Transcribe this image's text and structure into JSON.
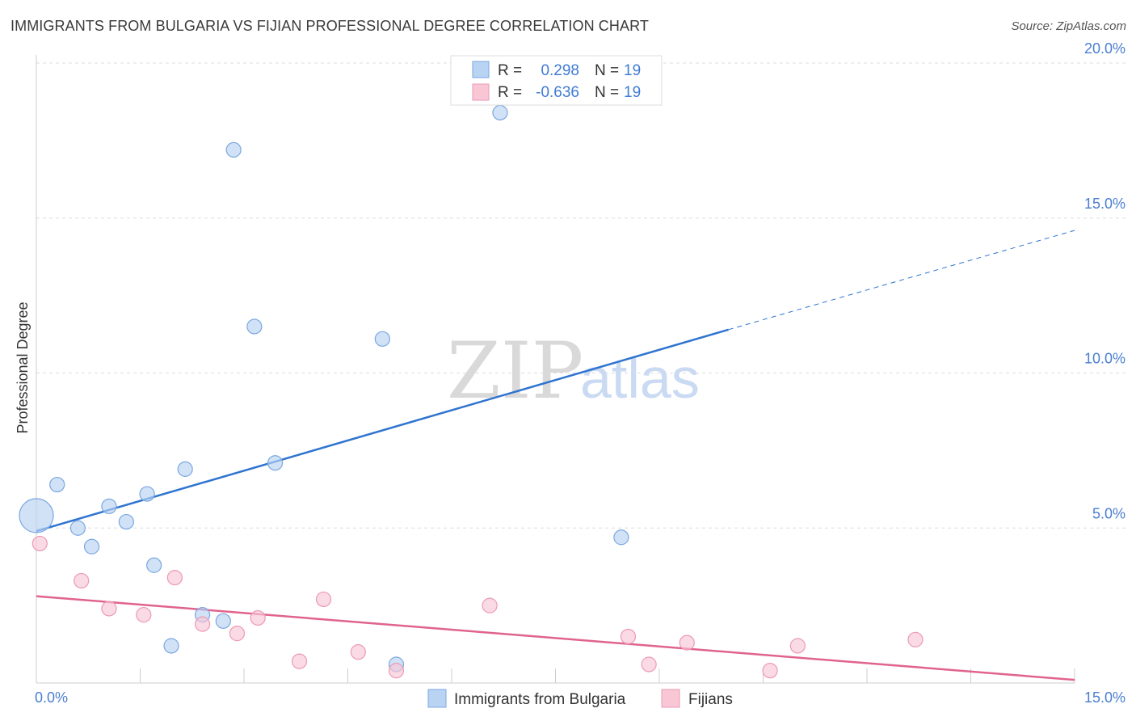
{
  "title": "IMMIGRANTS FROM BULGARIA VS FIJIAN PROFESSIONAL DEGREE CORRELATION CHART",
  "source": "Source: ZipAtlas.com",
  "watermark": {
    "zip": "ZIP",
    "atlas": "atlas"
  },
  "colors": {
    "blue_fill": "#b9d3f3",
    "blue_stroke": "#7aa7e0",
    "blue_line": "#2f74d0",
    "pink_fill": "#f8c6d5",
    "pink_stroke": "#ec9ab3",
    "pink_line": "#e0638e",
    "tick_text": "#4a7fd0",
    "grid": "#dddddd"
  },
  "chart_data": {
    "type": "scatter",
    "title": "IMMIGRANTS FROM BULGARIA VS FIJIAN PROFESSIONAL DEGREE CORRELATION CHART",
    "xlabel": "",
    "ylabel": "Professional Degree",
    "xlim": [
      0,
      15
    ],
    "ylim": [
      0,
      20
    ],
    "x_tick_labels": [
      "0.0%",
      "15.0%"
    ],
    "y_ticks": [
      5,
      10,
      15,
      20
    ],
    "y_tick_labels": [
      "5.0%",
      "10.0%",
      "15.0%",
      "20.0%"
    ],
    "grid": "horizontal dashed",
    "legend_top": [
      {
        "r_label": "R =",
        "r_value": "0.298",
        "n_label": "N =",
        "n_value": "19"
      },
      {
        "r_label": "R =",
        "r_value": "-0.636",
        "n_label": "N =",
        "n_value": "19"
      }
    ],
    "series": [
      {
        "name": "Immigrants from Bulgaria",
        "color": "#b9d3f3",
        "points": [
          {
            "x": 0.0,
            "y": 5.4,
            "big": true
          },
          {
            "x": 0.3,
            "y": 6.4
          },
          {
            "x": 0.6,
            "y": 5.0
          },
          {
            "x": 0.8,
            "y": 4.4
          },
          {
            "x": 1.05,
            "y": 5.7
          },
          {
            "x": 1.3,
            "y": 5.2
          },
          {
            "x": 1.6,
            "y": 6.1
          },
          {
            "x": 1.7,
            "y": 3.8
          },
          {
            "x": 1.95,
            "y": 1.2
          },
          {
            "x": 2.15,
            "y": 6.9
          },
          {
            "x": 2.4,
            "y": 2.2
          },
          {
            "x": 2.7,
            "y": 2.0
          },
          {
            "x": 2.85,
            "y": 17.2
          },
          {
            "x": 3.15,
            "y": 11.5
          },
          {
            "x": 3.45,
            "y": 7.1
          },
          {
            "x": 5.0,
            "y": 11.1
          },
          {
            "x": 5.2,
            "y": 0.6
          },
          {
            "x": 6.7,
            "y": 18.4
          },
          {
            "x": 8.45,
            "y": 4.7
          }
        ],
        "trend": {
          "x0": 0,
          "y0": 4.9,
          "x1": 10.0,
          "y1": 11.4,
          "dash_to_x": 15,
          "dash_to_y": 14.6
        }
      },
      {
        "name": "Fijians",
        "color": "#f8c6d5",
        "points": [
          {
            "x": 0.05,
            "y": 4.5
          },
          {
            "x": 0.65,
            "y": 3.3
          },
          {
            "x": 1.05,
            "y": 2.4
          },
          {
            "x": 1.55,
            "y": 2.2
          },
          {
            "x": 2.0,
            "y": 3.4
          },
          {
            "x": 2.4,
            "y": 1.9
          },
          {
            "x": 2.9,
            "y": 1.6
          },
          {
            "x": 3.2,
            "y": 2.1
          },
          {
            "x": 3.8,
            "y": 0.7
          },
          {
            "x": 4.15,
            "y": 2.7
          },
          {
            "x": 4.65,
            "y": 1.0
          },
          {
            "x": 5.2,
            "y": 0.4
          },
          {
            "x": 6.55,
            "y": 2.5
          },
          {
            "x": 8.55,
            "y": 1.5
          },
          {
            "x": 8.85,
            "y": 0.6
          },
          {
            "x": 9.4,
            "y": 1.3
          },
          {
            "x": 10.6,
            "y": 0.4
          },
          {
            "x": 11.0,
            "y": 1.2
          },
          {
            "x": 12.7,
            "y": 1.4
          }
        ],
        "trend": {
          "x0": 0,
          "y0": 2.8,
          "x1": 15,
          "y1": 0.1
        }
      }
    ]
  }
}
